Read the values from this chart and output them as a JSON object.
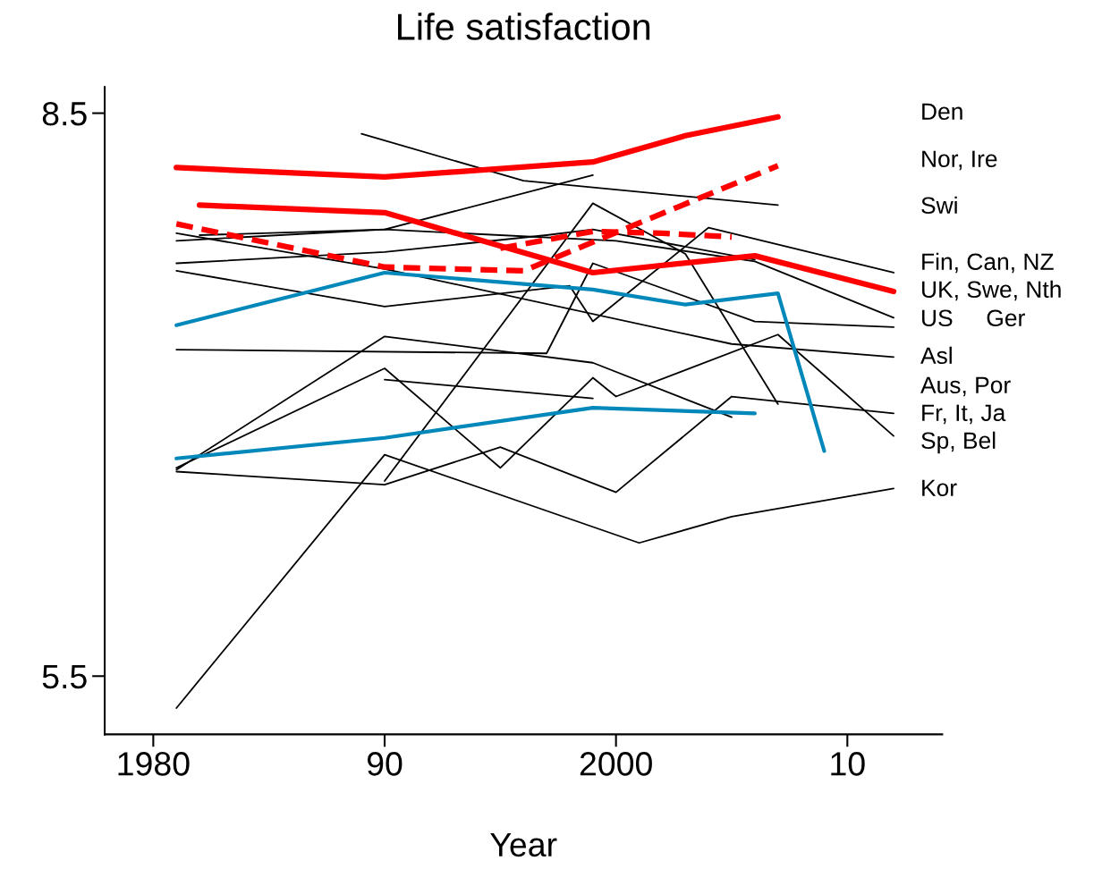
{
  "chart_data": {
    "type": "line",
    "title": "Life satisfaction",
    "xlabel": "Year",
    "xlim": [
      1977.9,
      2014.1
    ],
    "xticks": [
      1980,
      {
        "value": 1990,
        "label": "90"
      },
      2000,
      {
        "value": 2010,
        "label": "10"
      }
    ],
    "ylim": [
      5.19,
      8.64
    ],
    "yticks": [
      5.5,
      8.5
    ],
    "grid": false,
    "legend": false,
    "marker": "none",
    "series": [
      {
        "color": "#000000",
        "x": [
          1989,
          1996,
          2007
        ],
        "values": [
          8.39,
          8.14,
          8.01
        ]
      },
      {
        "color": "#000000",
        "x": [
          1981,
          1990,
          1999
        ],
        "values": [
          7.82,
          7.88,
          8.17
        ]
      },
      {
        "color": "#000000",
        "x": [
          1982,
          1990,
          2000,
          2006,
          2012
        ],
        "values": [
          7.85,
          7.88,
          7.82,
          7.71,
          7.41
        ]
      },
      {
        "color": "#000000",
        "x": [
          1981,
          1990,
          1997,
          1999,
          2006
        ],
        "values": [
          7.7,
          7.76,
          7.85,
          7.88,
          7.72
        ]
      },
      {
        "color": "#000000",
        "x": [
          1981,
          1990,
          1998,
          1999,
          2004,
          2012
        ],
        "values": [
          7.66,
          7.47,
          7.58,
          7.39,
          7.89,
          7.65
        ]
      },
      {
        "color": "#000000",
        "x": [
          1981,
          1990,
          2005,
          2012
        ],
        "values": [
          7.86,
          7.67,
          7.27,
          7.2
        ]
      },
      {
        "color": "#000000",
        "x": [
          1981,
          1997,
          1999,
          2006,
          2012
        ],
        "values": [
          7.24,
          7.22,
          7.7,
          7.39,
          7.36
        ]
      },
      {
        "color": "#000000",
        "x": [
          1990,
          1999,
          2003,
          2007
        ],
        "values": [
          6.54,
          8.02,
          7.75,
          6.95
        ]
      },
      {
        "color": "#000000",
        "x": [
          1981,
          1990,
          1995,
          1999,
          2000,
          2007,
          2012
        ],
        "values": [
          6.61,
          7.14,
          6.61,
          7.09,
          6.99,
          7.32,
          6.78
        ]
      },
      {
        "color": "#000000",
        "x": [
          1981,
          1990,
          1999,
          2005
        ],
        "values": [
          6.6,
          7.31,
          7.17,
          6.88
        ]
      },
      {
        "color": "#000000",
        "x": [
          1990,
          1999
        ],
        "values": [
          7.08,
          6.98
        ]
      },
      {
        "color": "#000000",
        "x": [
          1981,
          1990,
          1995,
          2000,
          2005,
          2012
        ],
        "values": [
          6.59,
          6.52,
          6.72,
          6.48,
          6.99,
          6.9
        ]
      },
      {
        "color": "#000000",
        "x": [
          1981,
          1990,
          2001,
          2005,
          2012
        ],
        "values": [
          5.33,
          6.68,
          6.21,
          6.35,
          6.5
        ]
      },
      {
        "color": "#0088bb",
        "x": [
          1981,
          1990,
          1999,
          2003,
          2007,
          2009
        ],
        "values": [
          7.37,
          7.65,
          7.56,
          7.48,
          7.54,
          6.7
        ]
      },
      {
        "color": "#0088bb",
        "x": [
          1981,
          1990,
          1999,
          2006
        ],
        "values": [
          6.66,
          6.77,
          6.93,
          6.9
        ]
      },
      {
        "color": "#ff0000",
        "x": [
          1981,
          1990,
          1999,
          2003,
          2007
        ],
        "values": [
          8.21,
          8.16,
          8.24,
          8.38,
          8.48
        ]
      },
      {
        "color": "#ff0000",
        "x": [
          1982,
          1990,
          1999,
          2006,
          2012
        ],
        "values": [
          8.01,
          7.97,
          7.65,
          7.74,
          7.55
        ]
      },
      {
        "color": "#ff0000",
        "line_style": "dashed",
        "x": [
          1981,
          1990,
          1996,
          2007
        ],
        "values": [
          7.91,
          7.68,
          7.66,
          8.22
        ]
      },
      {
        "color": "#ff0000",
        "line_style": "dashed",
        "x": [
          1995,
          1999,
          2002,
          2005
        ],
        "values": [
          7.78,
          7.87,
          7.86,
          7.84
        ]
      }
    ],
    "annotations": [
      "Den",
      "Nor, Ire",
      "Swi",
      "Fin, Can, NZ",
      "UK, Swe, Nth",
      "US     Ger",
      "Asl",
      "Aus, Por",
      "Fr, It, Ja",
      "Sp, Bel",
      "Kor"
    ]
  }
}
